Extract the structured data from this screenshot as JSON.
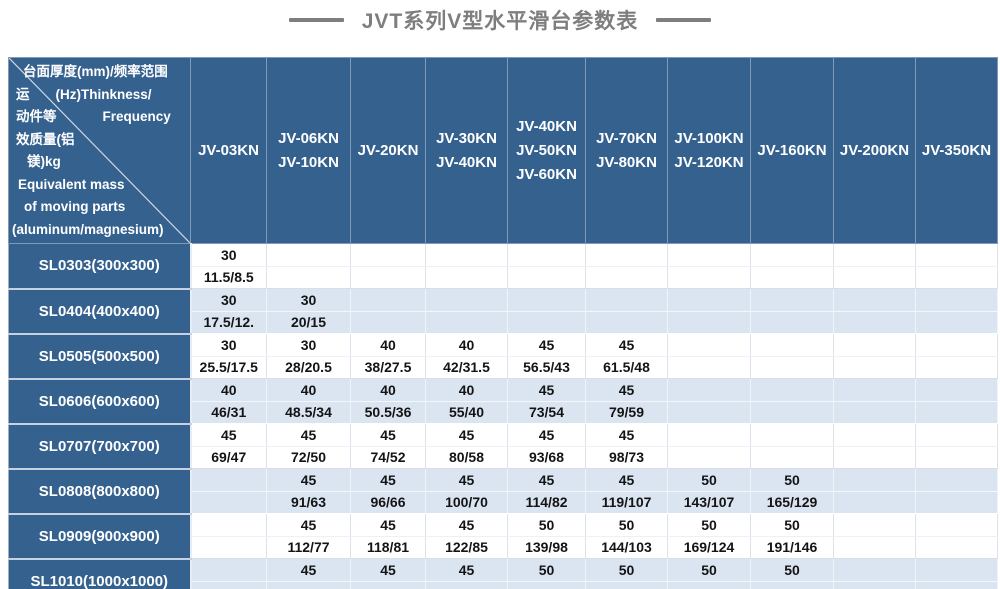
{
  "title": "JVT系列V型水平滑台参数表",
  "colors": {
    "header_blue": "#35618f",
    "row_band_blue": "#dbe5f1",
    "title_gray": "#7e7e7e",
    "value_text": "#141414"
  },
  "corner": {
    "line1": "台面厚度(mm)/频率范围",
    "line2_left": "运",
    "line2_right": "(Hz)Thinkness/",
    "line3_left": "动件等",
    "line3_right": "Frequency",
    "line4": "效质量(铝",
    "line5": "镁)kg",
    "line6": "Equivalent mass",
    "line7": "of moving parts",
    "line8": "(aluminum/magnesium)"
  },
  "columns": [
    {
      "lines": [
        "JV-03KN"
      ]
    },
    {
      "lines": [
        "JV-06KN",
        "JV-10KN"
      ]
    },
    {
      "lines": [
        "JV-20KN"
      ]
    },
    {
      "lines": [
        "JV-30KN",
        "JV-40KN"
      ]
    },
    {
      "lines": [
        "JV-40KN",
        "JV-50KN",
        "JV-60KN"
      ]
    },
    {
      "lines": [
        "JV-70KN",
        "JV-80KN"
      ]
    },
    {
      "lines": [
        "JV-100KN",
        "JV-120KN"
      ]
    },
    {
      "lines": [
        "JV-160KN"
      ]
    },
    {
      "lines": [
        "JV-200KN"
      ]
    },
    {
      "lines": [
        "JV-350KN"
      ]
    }
  ],
  "rows": [
    {
      "label": "SL0303(300x300)",
      "cells": [
        [
          "30",
          "11.5/8.5"
        ],
        [
          "",
          ""
        ],
        [
          "",
          ""
        ],
        [
          "",
          ""
        ],
        [
          "",
          ""
        ],
        [
          "",
          ""
        ],
        [
          "",
          ""
        ],
        [
          "",
          ""
        ],
        [
          "",
          ""
        ],
        [
          "",
          ""
        ]
      ]
    },
    {
      "label": "SL0404(400x400)",
      "cells": [
        [
          "30",
          "17.5/12."
        ],
        [
          "30",
          "20/15"
        ],
        [
          "",
          ""
        ],
        [
          "",
          ""
        ],
        [
          "",
          ""
        ],
        [
          "",
          ""
        ],
        [
          "",
          ""
        ],
        [
          "",
          ""
        ],
        [
          "",
          ""
        ],
        [
          "",
          ""
        ]
      ]
    },
    {
      "label": "SL0505(500x500)",
      "cells": [
        [
          "30",
          "25.5/17.5"
        ],
        [
          "30",
          "28/20.5"
        ],
        [
          "40",
          "38/27.5"
        ],
        [
          "40",
          "42/31.5"
        ],
        [
          "45",
          "56.5/43"
        ],
        [
          "45",
          "61.5/48"
        ],
        [
          "",
          ""
        ],
        [
          "",
          ""
        ],
        [
          "",
          ""
        ],
        [
          "",
          ""
        ]
      ]
    },
    {
      "label": "SL0606(600x600)",
      "cells": [
        [
          "40",
          "46/31"
        ],
        [
          "40",
          "48.5/34"
        ],
        [
          "40",
          "50.5/36"
        ],
        [
          "40",
          "55/40"
        ],
        [
          "45",
          "73/54"
        ],
        [
          "45",
          "79/59"
        ],
        [
          "",
          ""
        ],
        [
          "",
          ""
        ],
        [
          "",
          ""
        ],
        [
          "",
          ""
        ]
      ]
    },
    {
      "label": "SL0707(700x700)",
      "cells": [
        [
          "45",
          "69/47"
        ],
        [
          "45",
          "72/50"
        ],
        [
          "45",
          "74/52"
        ],
        [
          "45",
          "80/58"
        ],
        [
          "45",
          "93/68"
        ],
        [
          "45",
          "98/73"
        ],
        [
          "",
          ""
        ],
        [
          "",
          ""
        ],
        [
          "",
          ""
        ],
        [
          "",
          ""
        ]
      ]
    },
    {
      "label": "SL0808(800x800)",
      "cells": [
        [
          "",
          ""
        ],
        [
          "45",
          "91/63"
        ],
        [
          "45",
          "96/66"
        ],
        [
          "45",
          "100/70"
        ],
        [
          "45",
          "114/82"
        ],
        [
          "45",
          "119/107"
        ],
        [
          "50",
          "143/107"
        ],
        [
          "50",
          "165/129"
        ],
        [
          "",
          ""
        ],
        [
          "",
          ""
        ]
      ]
    },
    {
      "label": "SL0909(900x900)",
      "cells": [
        [
          "",
          ""
        ],
        [
          "45",
          "112/77"
        ],
        [
          "45",
          "118/81"
        ],
        [
          "45",
          "122/85"
        ],
        [
          "50",
          "139/98"
        ],
        [
          "50",
          "144/103"
        ],
        [
          "50",
          "169/124"
        ],
        [
          "50",
          "191/146"
        ],
        [
          "",
          ""
        ],
        [
          "",
          ""
        ]
      ]
    },
    {
      "label": "SL1010(1000x1000)",
      "cells": [
        [
          "",
          ""
        ],
        [
          "45",
          ""
        ],
        [
          "45",
          ""
        ],
        [
          "45",
          ""
        ],
        [
          "50",
          ""
        ],
        [
          "50",
          ""
        ],
        [
          "50",
          ""
        ],
        [
          "50",
          ""
        ],
        [
          "",
          ""
        ],
        [
          "",
          ""
        ]
      ]
    }
  ]
}
